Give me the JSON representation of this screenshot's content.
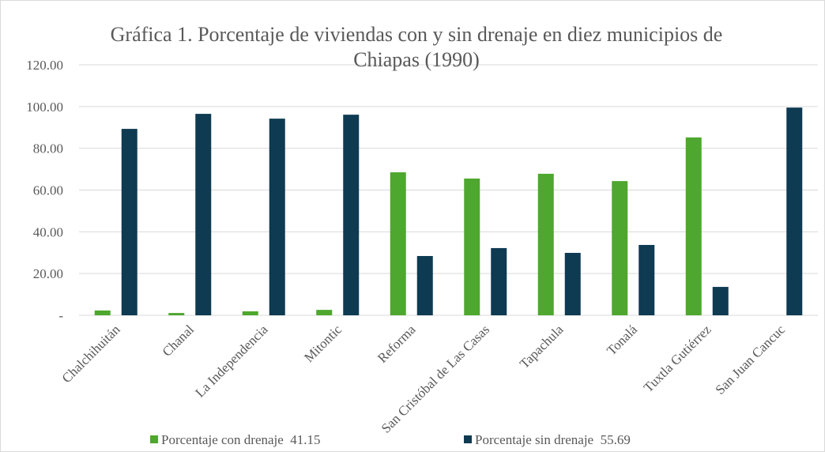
{
  "chart_data": {
    "type": "bar",
    "title": "Gráfica 1. Porcentaje de viviendas con y sin drenaje en diez municipios de Chiapas (1990)",
    "categories": [
      "Chalchihuitán",
      "Chanal",
      "La Independencia",
      "Mitontic",
      "Reforma",
      "San Cristóbal de Las Casas",
      "Tapachula",
      "Tonalá",
      "Tuxtla Gutiérrez",
      "San Juan Cancuc"
    ],
    "series": [
      {
        "name": "Porcentaje con drenaje  41.15",
        "color": "#4ea72e",
        "values": [
          2.3,
          1.1,
          1.9,
          2.6,
          68.5,
          65.5,
          67.8,
          64.3,
          85.2,
          0
        ]
      },
      {
        "name": "Porcentaje sin drenaje  55.69",
        "color": "#0e3a52",
        "values": [
          89.3,
          96.5,
          94.2,
          96.1,
          28.4,
          32.2,
          29.9,
          33.7,
          13.6,
          99.5
        ]
      }
    ],
    "ylim": [
      0,
      120
    ],
    "yticks": [
      {
        "value": 0,
        "label": "-"
      },
      {
        "value": 20,
        "label": "20.00"
      },
      {
        "value": 40,
        "label": "40.00"
      },
      {
        "value": 60,
        "label": "60.00"
      },
      {
        "value": 80,
        "label": "80.00"
      },
      {
        "value": 100,
        "label": "100.00"
      },
      {
        "value": 120,
        "label": "120.00"
      }
    ],
    "grid": true,
    "legend": "bottom"
  }
}
